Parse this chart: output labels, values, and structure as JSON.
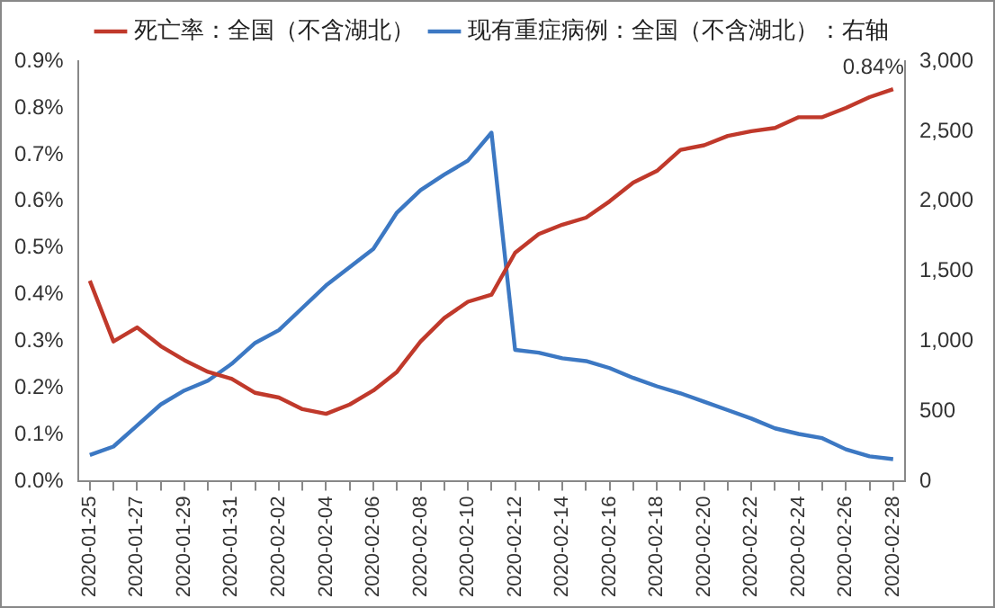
{
  "chart_data": {
    "type": "line",
    "categories": [
      "2020-01-25",
      null,
      "2020-01-27",
      null,
      "2020-01-29",
      null,
      "2020-01-31",
      null,
      "2020-02-02",
      null,
      "2020-02-04",
      null,
      "2020-02-06",
      null,
      "2020-02-08",
      null,
      "2020-02-10",
      null,
      "2020-02-12",
      null,
      "2020-02-14",
      null,
      "2020-02-16",
      null,
      "2020-02-18",
      null,
      "2020-02-20",
      null,
      "2020-02-22",
      null,
      "2020-02-24",
      null,
      "2020-02-26",
      null,
      "2020-02-28"
    ],
    "series": [
      {
        "name": "死亡率：全国（不含湖北）",
        "color": "#c0392b",
        "values": [
          0.43,
          0.3,
          0.33,
          0.29,
          0.26,
          0.235,
          0.22,
          0.19,
          0.18,
          0.155,
          0.145,
          0.165,
          0.195,
          0.235,
          0.3,
          0.35,
          0.385,
          0.4,
          0.49,
          0.53,
          0.55,
          0.565,
          0.6,
          0.64,
          0.665,
          0.71,
          0.72,
          0.74,
          0.75,
          0.757,
          0.78,
          0.78,
          0.8,
          0.823,
          0.84
        ]
      },
      {
        "name": "现有重症病例：全国（不含湖北）：右轴",
        "color": "#3c78c3",
        "axis": "y2",
        "values": [
          190,
          250,
          400,
          550,
          650,
          720,
          840,
          990,
          1080,
          1240,
          1400,
          1530,
          1660,
          1920,
          2080,
          2190,
          2290,
          2490,
          940,
          920,
          880,
          860,
          810,
          740,
          680,
          630,
          570,
          510,
          450,
          380,
          340,
          310,
          230,
          180,
          160
        ]
      }
    ],
    "ylim": [
      0,
      0.9
    ],
    "yticks": [
      {
        "value": 0,
        "label": "0.0%"
      },
      {
        "value": 0.1,
        "label": "0.1%"
      },
      {
        "value": 0.2,
        "label": "0.2%"
      },
      {
        "value": 0.3,
        "label": "0.3%"
      },
      {
        "value": 0.4,
        "label": "0.4%"
      },
      {
        "value": 0.5,
        "label": "0.5%"
      },
      {
        "value": 0.6,
        "label": "0.6%"
      },
      {
        "value": 0.7,
        "label": "0.7%"
      },
      {
        "value": 0.8,
        "label": "0.8%"
      },
      {
        "value": 0.9,
        "label": "0.9%"
      }
    ],
    "y2lim": [
      0,
      3000
    ],
    "y2ticks": [
      0,
      {
        "value": 500,
        "label": "500"
      },
      {
        "value": 1000,
        "label": "1,000"
      },
      {
        "value": 1500,
        "label": "1,500"
      },
      {
        "value": 2000,
        "label": "2,000"
      },
      {
        "value": 2500,
        "label": "2,500"
      },
      {
        "value": 3000,
        "label": "3,000"
      }
    ],
    "annotations": [
      {
        "text": "0.84%",
        "x": "2020-02-28",
        "y": 0.84
      }
    ],
    "legend": "top",
    "grid": false,
    "marker": "none",
    "line_style": "solid"
  }
}
